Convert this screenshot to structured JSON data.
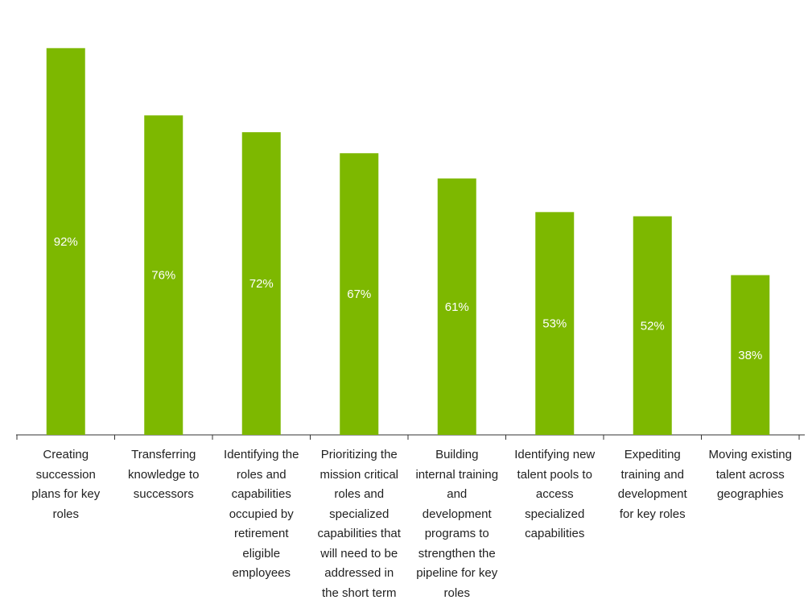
{
  "chart_data": {
    "type": "bar",
    "title": "",
    "xlabel": "",
    "ylabel": "",
    "ylim": [
      0,
      100
    ],
    "grid": false,
    "legend": "none",
    "bar_color": "#7db800",
    "label_color": "#ffffff",
    "axis_color": "#333333",
    "categories": [
      "Creating succession plans for key roles",
      "Transferring knowledge to successors",
      "Identifying the roles and capabilities occupied by retirement eligible employees",
      "Prioritizing the mission critical roles and specialized capabilities that will need to be addressed in the short term",
      "Building internal training and development programs to strengthen the pipeline for key roles",
      "Identifying new talent pools to access specialized capabilities",
      "Expediting training and development for key roles",
      "Moving existing talent across geographies"
    ],
    "category_lines": [
      [
        "Creating",
        "succession",
        "plans for key",
        "roles"
      ],
      [
        "Transferring",
        "knowledge to",
        "successors"
      ],
      [
        "Identifying the",
        "roles and",
        "capabilities",
        "occupied by",
        "retirement",
        "eligible",
        "employees"
      ],
      [
        "Prioritizing the",
        "mission critical",
        "roles and",
        "specialized",
        "capabilities that",
        "will need to be",
        "addressed in",
        "the short term"
      ],
      [
        "Building",
        "internal training",
        "and",
        "development",
        "programs to",
        "strengthen the",
        "pipeline for key",
        "roles"
      ],
      [
        "Identifying new",
        "talent pools to",
        "access",
        "specialized",
        "capabilities"
      ],
      [
        "Expediting",
        "training and",
        "development",
        "for key roles"
      ],
      [
        "Moving existing",
        "talent across",
        "geographies"
      ]
    ],
    "values": [
      92,
      76,
      72,
      67,
      61,
      53,
      52,
      38
    ],
    "data_labels": [
      "92%",
      "76%",
      "72%",
      "67%",
      "61%",
      "53%",
      "52%",
      "38%"
    ]
  }
}
